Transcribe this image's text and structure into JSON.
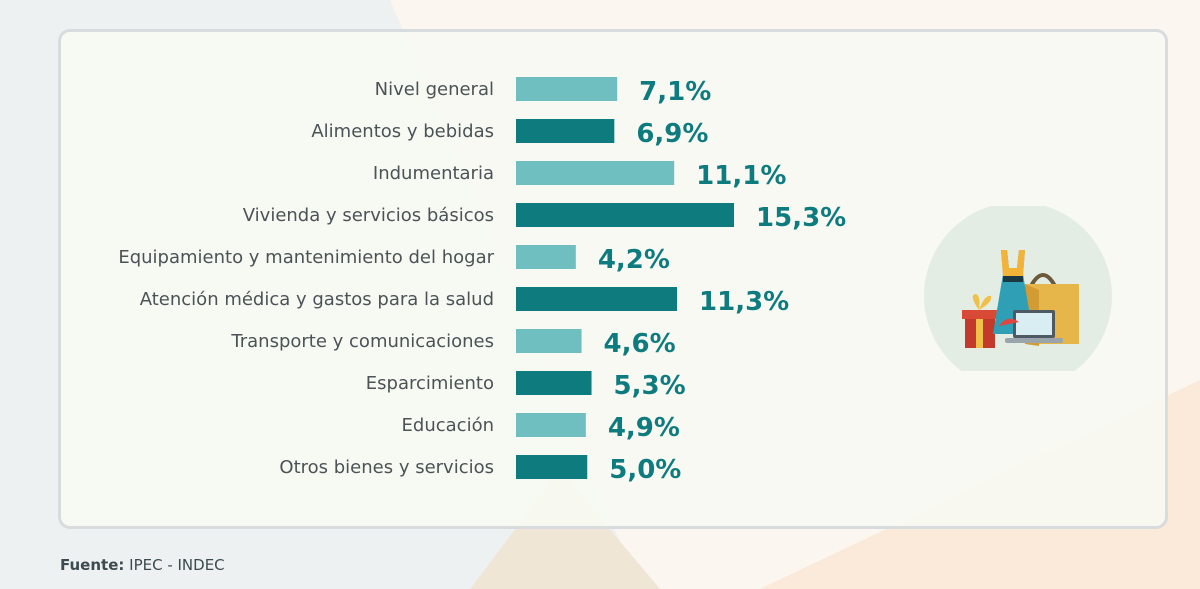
{
  "chart_data": {
    "type": "bar",
    "orientation": "horizontal",
    "categories": [
      "Nivel general",
      "Alimentos y bebidas",
      "Indumentaria",
      "Vivienda y servicios básicos",
      "Equipamiento y mantenimiento del hogar",
      "Atención médica y gastos para la salud",
      "Transporte y comunicaciones",
      "Esparcimiento",
      "Educación",
      "Otros bienes y servicios"
    ],
    "values": [
      7.1,
      6.9,
      11.1,
      15.3,
      4.2,
      11.3,
      4.6,
      5.3,
      4.9,
      5.0
    ],
    "data_labels": [
      "7,1%",
      "6,9%",
      "11,1%",
      "15,3%",
      "4,2%",
      "11,3%",
      "4,6%",
      "5,3%",
      "4,9%",
      "5,0%"
    ],
    "title": "",
    "xlabel": "",
    "ylabel": "",
    "grid": false,
    "colors": [
      "#6fbfc1",
      "#0e7b7e"
    ]
  },
  "source": {
    "label": "Fuente:",
    "text": " IPEC - INDEC"
  },
  "illustration": {
    "icon": "shopping-illustration-icon"
  }
}
